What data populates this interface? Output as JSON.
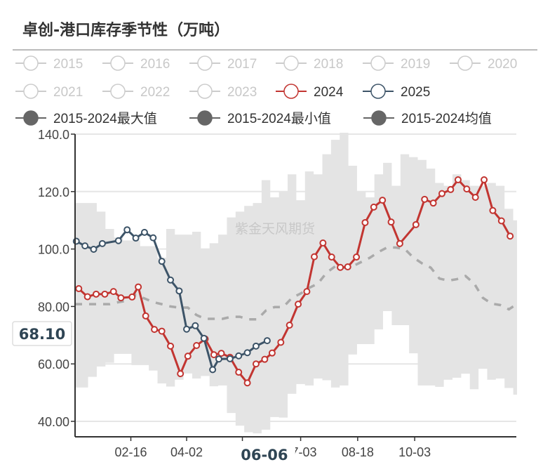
{
  "title": "卓创-港口库存季节性（万吨）",
  "watermark": "紫金天风期货",
  "legend": {
    "years": [
      {
        "label": "2015",
        "active": false,
        "color": "#cccccc"
      },
      {
        "label": "2016",
        "active": false,
        "color": "#cccccc"
      },
      {
        "label": "2017",
        "active": false,
        "color": "#cccccc"
      },
      {
        "label": "2018",
        "active": false,
        "color": "#cccccc"
      },
      {
        "label": "2019",
        "active": false,
        "color": "#cccccc"
      },
      {
        "label": "2020",
        "active": false,
        "color": "#cccccc"
      },
      {
        "label": "2021",
        "active": false,
        "color": "#cccccc"
      },
      {
        "label": "2022",
        "active": false,
        "color": "#cccccc"
      },
      {
        "label": "2023",
        "active": false,
        "color": "#cccccc"
      },
      {
        "label": "2024",
        "active": true,
        "color": "#c23531"
      },
      {
        "label": "2025",
        "active": true,
        "color": "#3d5468"
      }
    ],
    "stats": [
      {
        "label": "2015-2024最大值",
        "color": "#666666"
      },
      {
        "label": "2015-2024最小值",
        "color": "#666666"
      },
      {
        "label": "2015-2024均值",
        "color": "#666666"
      }
    ]
  },
  "pointer": {
    "x_label": "06-06",
    "y_label": "68.10"
  },
  "chart_data": {
    "type": "line",
    "title": "卓创-港口库存季节性（万吨）",
    "x_type": "date (MM-DD)",
    "xlim": [
      "01-02",
      "12-24"
    ],
    "ylim": [
      35,
      140
    ],
    "x_ticks": [
      "02-16",
      "04-02",
      "05-17",
      "07-03",
      "08-18",
      "10-03"
    ],
    "x_tick_labels_visible": [
      "02-16",
      "04-02",
      "07-03",
      "08-18",
      "10-03"
    ],
    "y_ticks": [
      "140.0",
      "120.0",
      "100.0",
      "80.00",
      "60.00",
      "40.00"
    ],
    "y_tick_values": [
      140,
      120,
      100,
      80,
      60,
      40
    ],
    "grid": true,
    "legend_position": "top",
    "band": {
      "x": [
        "01-02",
        "01-09",
        "01-16",
        "01-23",
        "01-30",
        "02-06",
        "02-13",
        "02-20",
        "02-27",
        "03-06",
        "03-13",
        "03-20",
        "03-27",
        "04-03",
        "04-10",
        "04-17",
        "04-24",
        "05-01",
        "05-08",
        "05-15",
        "05-22",
        "05-29",
        "06-05",
        "06-12",
        "06-19",
        "06-26",
        "07-03",
        "07-10",
        "07-17",
        "07-24",
        "07-31",
        "08-07",
        "08-14",
        "08-21",
        "08-28",
        "09-04",
        "09-11",
        "09-18",
        "09-25",
        "10-02",
        "10-09",
        "10-16",
        "10-23",
        "10-30",
        "11-06",
        "11-13",
        "11-20",
        "11-27",
        "12-04",
        "12-11",
        "12-18",
        "12-25"
      ],
      "max": [
        116,
        116,
        116,
        113,
        107,
        104,
        103,
        103,
        101,
        101,
        97,
        107,
        105,
        105,
        106,
        100,
        102,
        105,
        111,
        113,
        115,
        116,
        124,
        118,
        120,
        126,
        117,
        127,
        126,
        133,
        138,
        140.5,
        129,
        120,
        118,
        126,
        130,
        122,
        133,
        132,
        131,
        128,
        123,
        122,
        126,
        124,
        122,
        122,
        123,
        122,
        114,
        110
      ],
      "min": [
        51.8,
        51.8,
        55.5,
        59.1,
        60.4,
        63.5,
        63.5,
        59.6,
        59.6,
        57.7,
        53.2,
        52.1,
        54.5,
        56.7,
        54.9,
        55.8,
        52.2,
        52.5,
        42.9,
        38.5,
        36.2,
        35.8,
        37.1,
        41.5,
        41.3,
        49.6,
        53,
        52.5,
        54.9,
        54.3,
        51.8,
        52.5,
        63.3,
        66.9,
        66.9,
        72,
        78.4,
        73.5,
        73.5,
        63.7,
        52.5,
        52.5,
        52,
        54.5,
        55.2,
        56.6,
        51.2,
        58.3,
        54.5,
        54.9,
        51.6,
        49.3
      ],
      "avg": [
        80.8,
        80.8,
        80.8,
        80.8,
        80.8,
        81.5,
        82,
        84,
        82.8,
        81.5,
        80.8,
        80,
        79.6,
        79.6,
        77,
        75.7,
        75.7,
        75.7,
        76.4,
        76.4,
        75.5,
        75.5,
        78.6,
        79.8,
        79.8,
        83,
        84.5,
        86.5,
        88,
        91.8,
        94,
        93.5,
        94,
        95.5,
        97,
        99,
        100.6,
        100.5,
        100,
        97,
        95,
        93.5,
        89.7,
        89,
        89.5,
        90.6,
        88,
        83,
        81,
        80.5,
        79,
        81
      ]
    },
    "series": [
      {
        "name": "2024",
        "color": "#c23531",
        "x": [
          "01-05",
          "01-12",
          "01-19",
          "01-26",
          "02-02",
          "02-08",
          "02-17",
          "02-22",
          "02-28",
          "03-07",
          "03-13",
          "03-20",
          "03-28",
          "04-03",
          "04-10",
          "04-17",
          "04-24",
          "04-30",
          "05-07",
          "05-14",
          "05-21",
          "05-28",
          "06-04",
          "06-10",
          "06-17",
          "06-24",
          "07-01",
          "07-08",
          "07-14",
          "07-21",
          "07-28",
          "08-04",
          "08-10",
          "08-17",
          "08-24",
          "08-31",
          "09-07",
          "09-14",
          "09-21",
          "10-04",
          "10-11",
          "10-18",
          "10-25",
          "11-01",
          "11-07",
          "11-14",
          "11-21",
          "11-28",
          "12-05",
          "12-12",
          "12-19"
        ],
        "values": [
          86.2,
          83.4,
          84.3,
          84.3,
          85.2,
          83.0,
          83.3,
          86.8,
          76.7,
          72.0,
          71.4,
          66.2,
          56.6,
          62.7,
          66.4,
          68.7,
          63.2,
          63.7,
          62.3,
          57.1,
          53.4,
          60.0,
          61.6,
          63.8,
          67.5,
          73.5,
          80.8,
          85.2,
          97.3,
          102.1,
          97.2,
          93.6,
          93.8,
          97.2,
          109.2,
          114.6,
          117.0,
          109.4,
          101.9,
          108.5,
          117.3,
          116.0,
          119.3,
          120.7,
          124.1,
          120.9,
          118.0,
          124.1,
          113.4,
          109.8,
          104.5
        ]
      },
      {
        "name": "2025",
        "color": "#3d5468",
        "x": [
          "01-03",
          "01-10",
          "01-17",
          "01-24",
          "02-06",
          "02-13",
          "02-20",
          "02-27",
          "03-06",
          "03-13",
          "03-20",
          "03-27",
          "04-02",
          "04-09",
          "04-16",
          "04-23",
          "04-28",
          "05-07",
          "05-14",
          "05-21",
          "05-28",
          "06-06"
        ],
        "values": [
          102.7,
          101.1,
          99.9,
          101.9,
          102.9,
          106.7,
          103.8,
          105.8,
          103.9,
          95.7,
          89.2,
          85.4,
          72.1,
          73.3,
          68.9,
          58.0,
          61.7,
          61.8,
          62.8,
          63.9,
          66.2,
          68.1
        ]
      }
    ]
  }
}
